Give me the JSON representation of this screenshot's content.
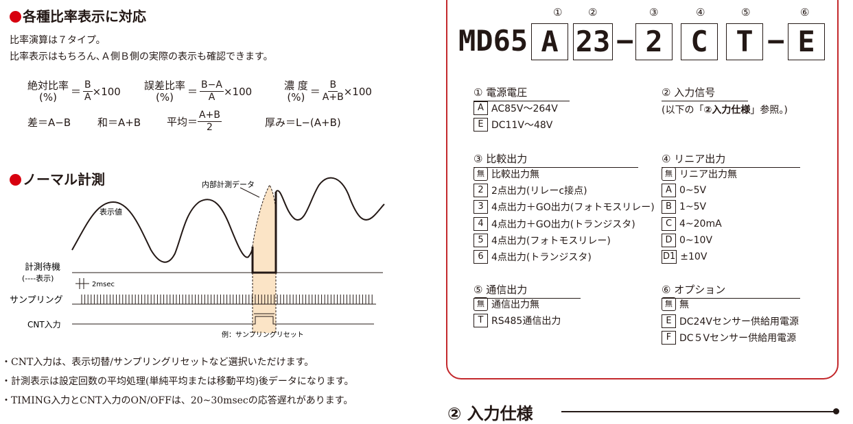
{
  "left": {
    "heading1": "各種比率表示に対応",
    "intro1": "比率演算は７タイプ。",
    "intro2": "比率表示はもちろん､Ａ側Ｂ側の実際の表示も確認できます。",
    "f1_label": "絶対比率",
    "f1_pct": "(%)",
    "f1_num": "B",
    "f1_den": "A",
    "f1_tail": "×100",
    "f2_label": "誤差比率",
    "f2_pct": "(%)",
    "f2_num": "B−A",
    "f2_den": "A",
    "f2_tail": "×100",
    "f3_label": "濃 度",
    "f3_pct": "(%)",
    "f3_num": "B",
    "f3_den": "A+B",
    "f3_tail": "×100",
    "sa": "差＝A−B",
    "wa": "和＝A+B",
    "avg_label": "平均＝",
    "avg_num": "A+B",
    "avg_den": "2",
    "thick": "厚み＝L−(A+B)",
    "heading2": "ノーマル計測",
    "chart_internal": "内部計測データ",
    "chart_display": "表示値",
    "chart_wait1": "計測待機",
    "chart_wait2": "(----表示)",
    "chart_2ms": "2msec",
    "chart_sampling": "サンプリング",
    "chart_cnt": "CNT入力",
    "chart_example": "例：サンプリングリセット",
    "note1": "・CNT入力は、表示切替/サンプリングリセットなど選択いただけます。",
    "note2": "・計測表示は設定回数の平均処理(単純平均または移動平均)後データになります。",
    "note3": "・TIMING入力とCNT入力のON/OFFは、20~30msecの応答遅れがあります。"
  },
  "right": {
    "model_prefix": "MD65",
    "code": [
      "A",
      "23",
      "2",
      "C",
      "T",
      "E"
    ],
    "dash": "−",
    "nums": [
      "①",
      "②",
      "③",
      "④",
      "⑤",
      "⑥"
    ],
    "s1_title": "① 電源電圧",
    "s1_items": [
      {
        "k": "A",
        "v": "AC85V〜264V"
      },
      {
        "k": "E",
        "v": "DC11V〜48V"
      }
    ],
    "s2_title": "② 入力信号",
    "s2_note_a": "(以下の「",
    "s2_note_b": "②入力仕様",
    "s2_note_c": "」参照。)",
    "s3_title": "③ 比較出力",
    "s3_items": [
      {
        "k": "無",
        "v": "比較出力無"
      },
      {
        "k": "2",
        "v": "2点出力(リレーc接点)"
      },
      {
        "k": "3",
        "v": "4点出力＋GO出力(フォトモスリレー)"
      },
      {
        "k": "4",
        "v": "4点出力＋GO出力(トランジスタ)"
      },
      {
        "k": "5",
        "v": "4点出力(フォトモスリレー)"
      },
      {
        "k": "6",
        "v": "4点出力(トランジスタ)"
      }
    ],
    "s4_title": "④ リニア出力",
    "s4_items": [
      {
        "k": "無",
        "v": "リニア出力無"
      },
      {
        "k": "A",
        "v": "0~5V"
      },
      {
        "k": "B",
        "v": "1~5V"
      },
      {
        "k": "C",
        "v": "4~20mA"
      },
      {
        "k": "D",
        "v": "0~10V"
      },
      {
        "k": "D1",
        "v": "±10V"
      }
    ],
    "s5_title": "⑤ 通信出力",
    "s5_items": [
      {
        "k": "無",
        "v": "通信出力無"
      },
      {
        "k": "T",
        "v": "RS485通信出力"
      }
    ],
    "s6_title": "⑥ オプション",
    "s6_items": [
      {
        "k": "無",
        "v": "無"
      },
      {
        "k": "E",
        "v": "DC24Vセンサー供給用電源"
      },
      {
        "k": "F",
        "v": "DC５Vセンサー供給用電源"
      }
    ],
    "bottom_title": "② 入力仕様"
  },
  "colors": {
    "accent_red": "#d7000f",
    "panel_border": "#c3272b",
    "highlight": "#fbe4c6"
  }
}
